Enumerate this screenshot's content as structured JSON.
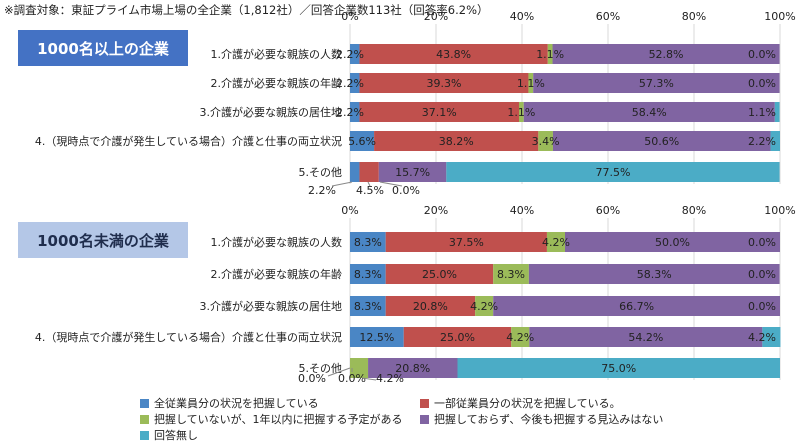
{
  "note": "※調査対象：東証プライム市場上場の全企業（1,812社）／回答企業数113社（回答率6.2%）",
  "colors": {
    "all_employees": "#4a86c5",
    "some_employees": "#c0504d",
    "plan_within_year": "#9bbb59",
    "no_plan": "#8064a2",
    "no_answer": "#4bacc6"
  },
  "chart_data": [
    {
      "type": "bar",
      "orientation": "horizontal",
      "stacked": true,
      "title": "1000名以上の企業",
      "xlim": [
        0,
        100
      ],
      "xticks": [
        "0%",
        "20%",
        "40%",
        "60%",
        "80%",
        "100%"
      ],
      "categories": [
        "1.介護が必要な親族の人数",
        "2.介護が必要な親族の年齢",
        "3.介護が必要な親族の居住地",
        "4.（現時点で介護が発生している場合）介護と仕事の両立状況",
        "5.その他"
      ],
      "series": [
        {
          "name": "全従業員分の状況を把握している",
          "values": [
            2.2,
            2.2,
            2.2,
            5.6,
            2.2
          ]
        },
        {
          "name": "一部従業員分の状況を把握している。",
          "values": [
            43.8,
            39.3,
            37.1,
            38.2,
            4.5
          ]
        },
        {
          "name": "把握していないが、1年以内に把握する予定がある",
          "values": [
            1.1,
            1.1,
            1.1,
            3.4,
            0.0
          ]
        },
        {
          "name": "把握しておらず、今後も把握する見込みはない",
          "values": [
            52.8,
            57.3,
            58.4,
            50.6,
            15.7
          ]
        },
        {
          "name": "回答無し",
          "values": [
            0.0,
            0.0,
            1.1,
            2.2,
            77.5
          ]
        }
      ],
      "labels": [
        [
          "2.2%",
          "43.8%",
          "1.1%",
          "52.8%",
          "0.0%"
        ],
        [
          "2.2%",
          "39.3%",
          "1.1%",
          "57.3%",
          "0.0%"
        ],
        [
          "2.2%",
          "37.1%",
          "1.1%",
          "58.4%",
          "1.1%"
        ],
        [
          "5.6%",
          "38.2%",
          "3.4%",
          "50.6%",
          "2.2%"
        ],
        [
          "2.2%",
          "4.5%",
          "0.0%",
          "15.7%",
          "77.5%"
        ]
      ]
    },
    {
      "type": "bar",
      "orientation": "horizontal",
      "stacked": true,
      "title": "1000名未満の企業",
      "xlim": [
        0,
        100
      ],
      "xticks": [
        "0%",
        "20%",
        "40%",
        "60%",
        "80%",
        "100%"
      ],
      "categories": [
        "1.介護が必要な親族の人数",
        "2.介護が必要な親族の年齢",
        "3.介護が必要な親族の居住地",
        "4.（現時点で介護が発生している場合）介護と仕事の両立状況",
        "5.その他"
      ],
      "series": [
        {
          "name": "全従業員分の状況を把握している",
          "values": [
            8.3,
            8.3,
            8.3,
            12.5,
            0.0
          ]
        },
        {
          "name": "一部従業員分の状況を把握している。",
          "values": [
            37.5,
            25.0,
            20.8,
            25.0,
            0.0
          ]
        },
        {
          "name": "把握していないが、1年以内に把握する予定がある",
          "values": [
            4.2,
            8.3,
            4.2,
            4.2,
            4.2
          ]
        },
        {
          "name": "把握しておらず、今後も把握する見込みはない",
          "values": [
            50.0,
            58.3,
            66.7,
            54.2,
            20.8
          ]
        },
        {
          "name": "回答無し",
          "values": [
            0.0,
            0.0,
            0.0,
            4.2,
            75.0
          ]
        }
      ],
      "labels": [
        [
          "8.3%",
          "37.5%",
          "4.2%",
          "50.0%",
          "0.0%"
        ],
        [
          "8.3%",
          "25.0%",
          "8.3%",
          "58.3%",
          "0.0%"
        ],
        [
          "8.3%",
          "20.8%",
          "4.2%",
          "66.7%",
          "0.0%"
        ],
        [
          "12.5%",
          "25.0%",
          "4.2%",
          "54.2%",
          "4.2%"
        ],
        [
          "0.0%",
          "0.0%",
          "4.2%",
          "20.8%",
          "75.0%"
        ]
      ]
    }
  ],
  "legend": [
    {
      "key": "all_employees",
      "label": "全従業員分の状況を把握している"
    },
    {
      "key": "some_employees",
      "label": "一部従業員分の状況を把握している。"
    },
    {
      "key": "plan_within_year",
      "label": "把握していないが、1年以内に把握する予定がある"
    },
    {
      "key": "no_plan",
      "label": "把握しておらず、今後も把握する見込みはない"
    },
    {
      "key": "no_answer",
      "label": "回答無し"
    }
  ]
}
